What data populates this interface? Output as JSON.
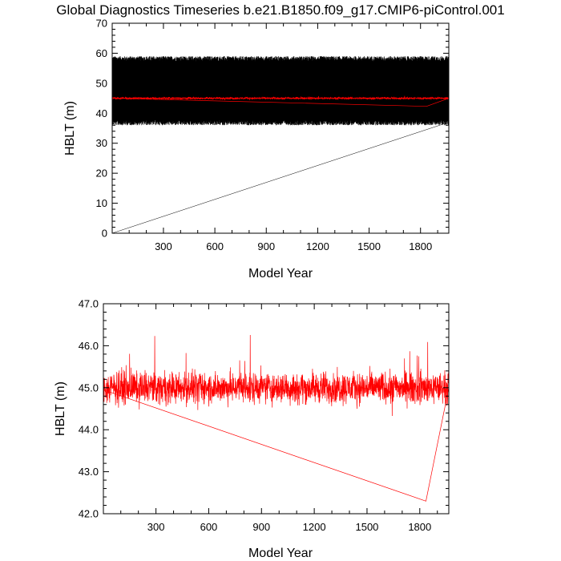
{
  "figure_title": "Global Diagnostics Timeseries b.e21.B1850.f09_g17.CMIP6-piControl.001",
  "colors": {
    "raw": "#000000",
    "mean": "#ff0000",
    "axis": "#000000"
  },
  "chart_data": [
    {
      "type": "line",
      "title": "Global Diagnostics Timeseries b.e21.B1850.f09_g17.CMIP6-piControl.001",
      "xlabel": "Model Year",
      "ylabel": "HBLT (m)",
      "xlim": [
        1,
        1965
      ],
      "ylim": [
        0,
        70
      ],
      "xticks": [
        300,
        600,
        900,
        1200,
        1500,
        1800
      ],
      "yticks": [
        0,
        10,
        20,
        30,
        40,
        50,
        60,
        70
      ],
      "grid": false,
      "series": [
        {
          "color": "#000000",
          "style": "dense oscillation",
          "band_min": 36,
          "band_max": 59,
          "wrap_line": [
            [
              1,
              0
            ],
            [
              1965,
              37
            ]
          ]
        },
        {
          "color": "#ff0000",
          "style": "noisy line",
          "center": 45,
          "wrap_line": [
            [
              1,
              45
            ],
            [
              1835,
              42.3
            ],
            [
              1965,
              45
            ]
          ]
        }
      ]
    },
    {
      "type": "line",
      "xlabel": "Model Year",
      "ylabel": "HBLT (m)",
      "xlim": [
        1,
        1965
      ],
      "ylim": [
        42,
        47
      ],
      "xticks": [
        300,
        600,
        900,
        1200,
        1500,
        1800
      ],
      "yticks": [
        42.0,
        43.0,
        44.0,
        45.0,
        46.0,
        47.0
      ],
      "grid": false,
      "series": [
        {
          "color": "#ff0000",
          "style": "noisy line",
          "center": 45.0,
          "range_min": 43.8,
          "range_max": 46.8,
          "wrap_line": [
            [
              1,
              44.95
            ],
            [
              1835,
              42.3
            ],
            [
              1965,
              45.0
            ]
          ]
        }
      ]
    }
  ]
}
